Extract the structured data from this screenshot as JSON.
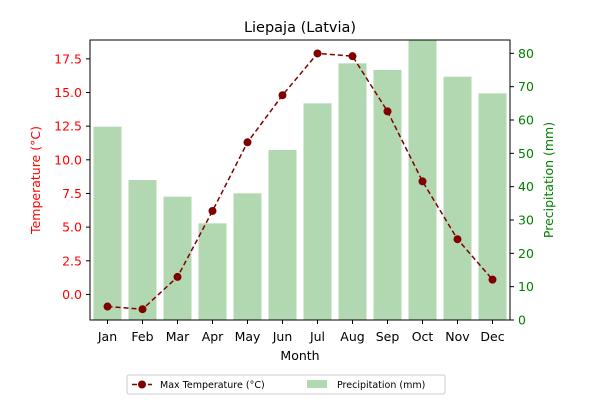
{
  "chart_data": {
    "type": "bar+line",
    "title": "Liepaja (Latvia)",
    "xlabel": "Month",
    "categories": [
      "Jan",
      "Feb",
      "Mar",
      "Apr",
      "May",
      "Jun",
      "Jul",
      "Aug",
      "Sep",
      "Oct",
      "Nov",
      "Dec"
    ],
    "left_axis": {
      "label": "Temperature (°C)",
      "color": "#ff0000",
      "ylim": [
        -1.9,
        18.9
      ],
      "ticks": [
        "0.0",
        "2.5",
        "5.0",
        "7.5",
        "10.0",
        "12.5",
        "15.0",
        "17.5"
      ],
      "tick_values": [
        0,
        2.5,
        5,
        7.5,
        10,
        12.5,
        15,
        17.5
      ]
    },
    "right_axis": {
      "label": "Precipitation (mm)",
      "color": "#008000",
      "ylim": [
        0,
        84
      ],
      "ticks": [
        "0",
        "10",
        "20",
        "30",
        "40",
        "50",
        "60",
        "70",
        "80"
      ],
      "tick_values": [
        0,
        10,
        20,
        30,
        40,
        50,
        60,
        70,
        80
      ]
    },
    "series": [
      {
        "name": "Max Temperature (°C)",
        "type": "line",
        "axis": "left",
        "color": "#800000",
        "style": "dashed",
        "marker": "circle",
        "values": [
          -0.9,
          -1.1,
          1.3,
          6.2,
          11.3,
          14.8,
          17.9,
          17.7,
          13.6,
          8.4,
          4.1,
          1.1
        ]
      },
      {
        "name": "Precipitation (mm)",
        "type": "bar",
        "axis": "right",
        "color": "#b2d8b2",
        "values": [
          58,
          42,
          37,
          29,
          38,
          51,
          65,
          77,
          75,
          85,
          73,
          68
        ]
      }
    ],
    "legend": {
      "position": "bottom-center",
      "columns": 2
    },
    "grid": false
  }
}
